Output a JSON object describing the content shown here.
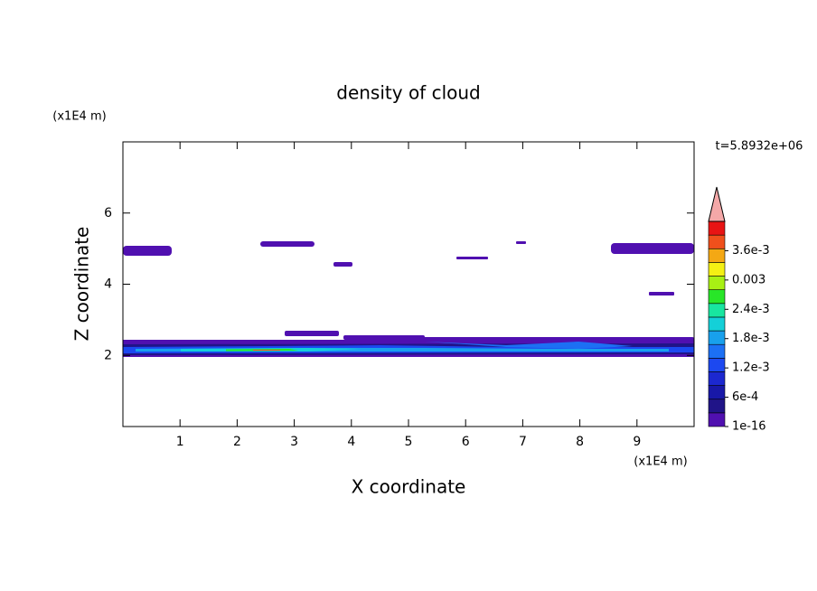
{
  "chart_data": {
    "type": "contour",
    "title": "density of cloud",
    "xlabel": "X coordinate",
    "ylabel": "Z coordinate",
    "xunit": "(x1E4 m)",
    "yunit": "(x1E4 m)",
    "annotation": "t=5.8932e+06",
    "xlim": [
      0,
      10
    ],
    "xticks": [
      1,
      2,
      3,
      4,
      5,
      6,
      7,
      8,
      9
    ],
    "ylim": [
      0,
      8
    ],
    "yticks": [
      2,
      4,
      6
    ],
    "colorbar": {
      "clim": [
        1e-16,
        0.0042
      ],
      "colors": [
        "#5010b0",
        "#201488",
        "#1818a8",
        "#1c28d0",
        "#1c48f0",
        "#1c70f4",
        "#18a0ec",
        "#14d0d8",
        "#18e6a0",
        "#28e628",
        "#a8f014",
        "#f4f014",
        "#f4a814",
        "#f0501c",
        "#e81414"
      ],
      "over_color": "#f4a8a8",
      "ticks": [
        1e-16,
        {
          "value": 0.0006,
          "label": "6e-4"
        },
        {
          "value": 0.0012,
          "label": "1.2e-3"
        },
        {
          "value": 0.0018,
          "label": "1.8e-3"
        },
        {
          "value": 0.0024,
          "label": "2.4e-3"
        },
        0.003,
        {
          "value": 0.0036,
          "label": "3.6e-3"
        }
      ]
    }
  }
}
